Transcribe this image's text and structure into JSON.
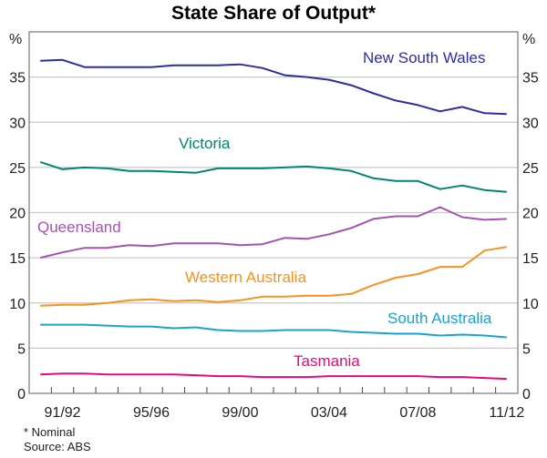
{
  "chart_data": {
    "type": "line",
    "title": "State Share of Output*",
    "ylabel_left": "%",
    "ylabel_right": "%",
    "ylim": [
      0,
      40
    ],
    "yticks": [
      "0",
      "5",
      "10",
      "15",
      "20",
      "25",
      "30",
      "35"
    ],
    "grid": true,
    "x": [
      "90/91",
      "91/92",
      "92/93",
      "93/94",
      "94/95",
      "95/96",
      "96/97",
      "97/98",
      "98/99",
      "99/00",
      "00/01",
      "01/02",
      "02/03",
      "03/04",
      "04/05",
      "05/06",
      "06/07",
      "07/08",
      "08/09",
      "09/10",
      "10/11",
      "11/12"
    ],
    "xtick_labels": [
      "91/92",
      "95/96",
      "99/00",
      "03/04",
      "07/08",
      "11/12"
    ],
    "series": [
      {
        "name": "New South Wales",
        "color": "#2e2e9c",
        "values": [
          36.8,
          36.9,
          36.1,
          36.1,
          36.1,
          36.1,
          36.3,
          36.3,
          36.3,
          36.4,
          36.0,
          35.2,
          35.0,
          34.7,
          34.1,
          33.2,
          32.4,
          31.9,
          31.2,
          31.7,
          31.0,
          30.9
        ]
      },
      {
        "name": "Victoria",
        "color": "#00866f",
        "values": [
          25.6,
          24.8,
          25.0,
          24.9,
          24.6,
          24.6,
          24.5,
          24.4,
          24.9,
          24.9,
          24.9,
          25.0,
          25.1,
          24.9,
          24.6,
          23.8,
          23.5,
          23.5,
          22.6,
          23.0,
          22.5,
          22.3
        ]
      },
      {
        "name": "Queensland",
        "color": "#a552b4",
        "values": [
          15.0,
          15.6,
          16.1,
          16.1,
          16.4,
          16.3,
          16.6,
          16.6,
          16.6,
          16.4,
          16.5,
          17.2,
          17.1,
          17.6,
          18.3,
          19.3,
          19.6,
          19.6,
          20.6,
          19.5,
          19.2,
          19.3
        ]
      },
      {
        "name": "Western Australia",
        "color": "#f7921e",
        "values": [
          9.7,
          9.8,
          9.8,
          10.0,
          10.3,
          10.4,
          10.2,
          10.3,
          10.1,
          10.3,
          10.7,
          10.7,
          10.8,
          10.8,
          11.0,
          12.0,
          12.8,
          13.2,
          14.0,
          14.0,
          15.8,
          16.2
        ]
      },
      {
        "name": "South Australia",
        "color": "#1aa3cf",
        "values": [
          7.6,
          7.6,
          7.6,
          7.5,
          7.4,
          7.4,
          7.2,
          7.3,
          7.0,
          6.9,
          6.9,
          7.0,
          7.0,
          7.0,
          6.8,
          6.7,
          6.6,
          6.6,
          6.4,
          6.5,
          6.4,
          6.2
        ]
      },
      {
        "name": "Tasmania",
        "color": "#e6097f",
        "values": [
          2.1,
          2.2,
          2.2,
          2.1,
          2.1,
          2.1,
          2.1,
          2.0,
          1.9,
          1.9,
          1.8,
          1.8,
          1.8,
          1.9,
          1.9,
          1.9,
          1.9,
          1.9,
          1.8,
          1.8,
          1.7,
          1.6
        ]
      }
    ],
    "footnotes": [
      "*   Nominal",
      "Source: ABS"
    ]
  }
}
